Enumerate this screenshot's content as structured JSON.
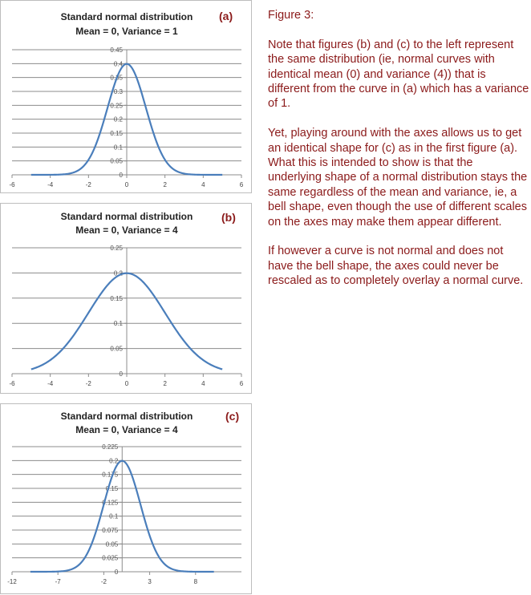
{
  "chart_data": [
    {
      "type": "line",
      "title": "Standard normal distribution",
      "subtitle": "Mean = 0, Variance = 1",
      "label": "(a)",
      "mean": 0,
      "variance": 1,
      "x_range": [
        -5,
        5
      ],
      "xlim": [
        -6,
        6
      ],
      "ylim": [
        0,
        0.45
      ],
      "xticks": [
        -6,
        -4,
        -2,
        0,
        2,
        4,
        6
      ],
      "yticks": [
        0,
        0.05,
        0.1,
        0.15,
        0.2,
        0.25,
        0.3,
        0.35,
        0.4,
        0.45
      ],
      "grid": true,
      "line_color": "#4a7ebb"
    },
    {
      "type": "line",
      "title": "Standard normal distribution",
      "subtitle": "Mean = 0, Variance = 4",
      "label": "(b)",
      "mean": 0,
      "variance": 4,
      "x_range": [
        -5,
        5
      ],
      "xlim": [
        -6,
        6
      ],
      "ylim": [
        0,
        0.25
      ],
      "xticks": [
        -6,
        -4,
        -2,
        0,
        2,
        4,
        6
      ],
      "yticks": [
        0,
        0.05,
        0.1,
        0.15,
        0.2,
        0.25
      ],
      "grid": true,
      "line_color": "#4a7ebb"
    },
    {
      "type": "line",
      "title": "Standard normal distribution",
      "subtitle": "Mean = 0, Variance = 4",
      "label": "(c)",
      "mean": 0,
      "variance": 4,
      "x_range": [
        -10,
        10
      ],
      "xlim": [
        -12,
        13
      ],
      "ylim": [
        0,
        0.225
      ],
      "xticks": [
        -12,
        -7,
        -2,
        3,
        8
      ],
      "yticks": [
        0,
        0.025,
        0.05,
        0.075,
        0.1,
        0.125,
        0.15,
        0.175,
        0.2,
        0.225
      ],
      "grid": true,
      "line_color": "#4a7ebb"
    }
  ],
  "note": {
    "heading": "Figure 3:",
    "paragraphs": [
      "Note that figures (b) and (c) to the left represent the same distribution (ie, normal curves with identical mean (0) and variance (4)) that is different from the curve in (a) which has a variance of 1.",
      "Yet, playing around with the axes allows us to get an identical shape for (c) as in the first figure (a).  What this is intended to show is that the underlying shape of a normal distribution stays the same regardless of the mean and variance, ie, a bell shape, even though the use of different scales on the axes may make them appear different.",
      "If however a curve is not normal and does not have the bell shape, the axes could never be rescaled as to completely overlay a normal curve."
    ],
    "color": "#8b1a1a"
  }
}
